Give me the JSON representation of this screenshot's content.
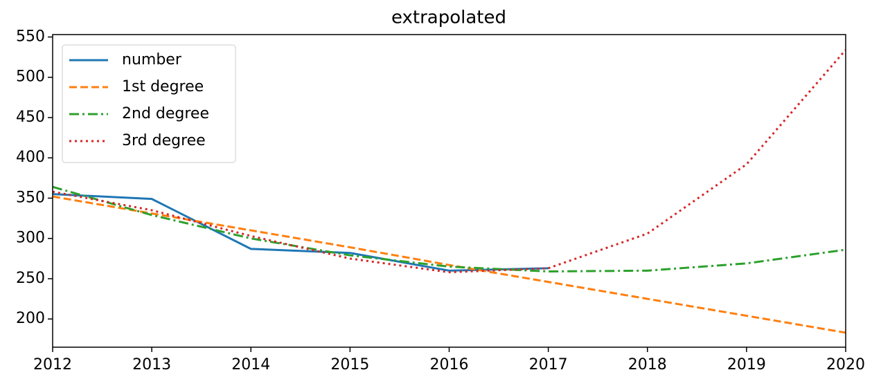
{
  "chart_data": {
    "type": "line",
    "title": "extrapolated",
    "x": [
      2012,
      2013,
      2014,
      2015,
      2016,
      2017,
      2018,
      2019,
      2020
    ],
    "series": [
      {
        "name": "number",
        "color": "#1f77b4",
        "linestyle": "solid",
        "values": [
          355,
          349,
          287,
          282,
          260,
          263,
          null,
          null,
          null
        ]
      },
      {
        "name": "1st degree",
        "color": "#ff7f0e",
        "linestyle": "dashed",
        "values": [
          352,
          331,
          310,
          289,
          267,
          246,
          225,
          204,
          183
        ]
      },
      {
        "name": "2nd degree",
        "color": "#2ca02c",
        "linestyle": "dashdot",
        "values": [
          364,
          329,
          300,
          279,
          265,
          259,
          260,
          269,
          286
        ]
      },
      {
        "name": "3rd degree",
        "color": "#d62728",
        "linestyle": "dotted",
        "values": [
          358,
          335,
          303,
          275,
          258,
          263,
          306,
          392,
          534
        ]
      }
    ],
    "xlim": [
      2012,
      2020
    ],
    "xticks": [
      2012,
      2013,
      2014,
      2015,
      2016,
      2017,
      2018,
      2019,
      2020
    ],
    "ylim": [
      165,
      553
    ],
    "yticks": [
      200,
      250,
      300,
      350,
      400,
      450,
      500,
      550
    ],
    "legend": "upper left"
  }
}
